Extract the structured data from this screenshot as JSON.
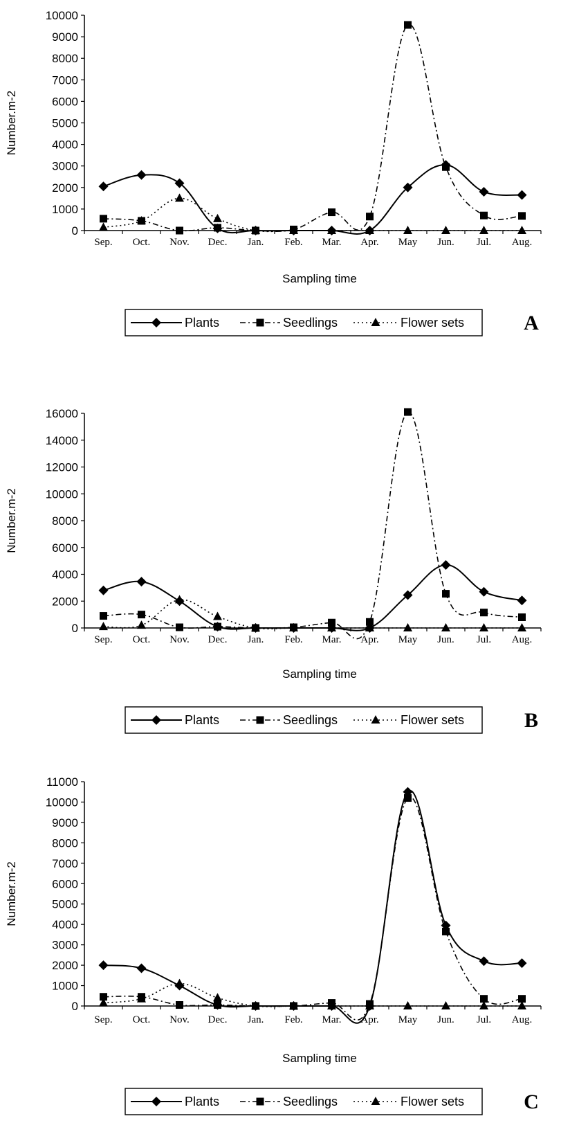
{
  "chart_data": [
    {
      "type": "line",
      "panel_label": "A",
      "xlabel": "Sampling time",
      "ylabel": "Number.m-2",
      "categories": [
        "Sep.",
        "Oct.",
        "Nov.",
        "Dec.",
        "Jan.",
        "Feb.",
        "Mar.",
        "Apr.",
        "May",
        "Jun.",
        "Jul.",
        "Aug."
      ],
      "ylim": [
        0,
        10000
      ],
      "yticks": [
        0,
        1000,
        2000,
        3000,
        4000,
        5000,
        6000,
        7000,
        8000,
        9000,
        10000
      ],
      "grid": false,
      "legend_position": "bottom",
      "series": [
        {
          "name": "Plants",
          "style": "solid",
          "marker": "diamond",
          "values": [
            2050,
            2580,
            2200,
            100,
            0,
            0,
            0,
            0,
            2000,
            3050,
            1800,
            1650
          ]
        },
        {
          "name": "Seedlings",
          "style": "dash-dot",
          "marker": "square",
          "values": [
            550,
            450,
            0,
            130,
            0,
            50,
            850,
            650,
            9550,
            2950,
            700,
            680
          ]
        },
        {
          "name": "Flower sets",
          "style": "dotted",
          "marker": "triangle",
          "values": [
            150,
            450,
            1500,
            550,
            0,
            0,
            0,
            0,
            0,
            0,
            0,
            0
          ]
        }
      ]
    },
    {
      "type": "line",
      "panel_label": "B",
      "xlabel": "Sampling time",
      "ylabel": "Number.m-2",
      "categories": [
        "Sep.",
        "Oct.",
        "Nov.",
        "Dec.",
        "Jan.",
        "Feb.",
        "Mar.",
        "Apr.",
        "May",
        "Jun.",
        "Jul.",
        "Aug."
      ],
      "ylim": [
        0,
        16000
      ],
      "yticks": [
        0,
        2000,
        4000,
        6000,
        8000,
        10000,
        12000,
        14000,
        16000
      ],
      "grid": false,
      "legend_position": "bottom",
      "series": [
        {
          "name": "Plants",
          "style": "solid",
          "marker": "diamond",
          "values": [
            2800,
            3450,
            2000,
            100,
            0,
            0,
            0,
            0,
            2450,
            4700,
            2700,
            2050
          ]
        },
        {
          "name": "Seedlings",
          "style": "dash-dot",
          "marker": "square",
          "values": [
            900,
            1000,
            50,
            100,
            0,
            50,
            400,
            450,
            16100,
            2550,
            1150,
            800
          ]
        },
        {
          "name": "Flower sets",
          "style": "dotted",
          "marker": "triangle",
          "values": [
            100,
            200,
            2100,
            850,
            0,
            0,
            0,
            0,
            0,
            0,
            0,
            0
          ]
        }
      ]
    },
    {
      "type": "line",
      "panel_label": "C",
      "xlabel": "Sampling time",
      "ylabel": "Number.m-2",
      "categories": [
        "Sep.",
        "Oct.",
        "Nov.",
        "Dec.",
        "Jan.",
        "Feb.",
        "Mar.",
        "Apr.",
        "May",
        "Jun.",
        "Jul.",
        "Aug."
      ],
      "ylim": [
        0,
        11000
      ],
      "yticks": [
        0,
        1000,
        2000,
        3000,
        4000,
        5000,
        6000,
        7000,
        8000,
        9000,
        10000,
        11000
      ],
      "grid": false,
      "legend_position": "bottom",
      "series": [
        {
          "name": "Plants",
          "style": "solid",
          "marker": "diamond",
          "values": [
            2000,
            1850,
            1000,
            50,
            0,
            0,
            0,
            0,
            10500,
            3950,
            2200,
            2100
          ]
        },
        {
          "name": "Seedlings",
          "style": "dash-dot",
          "marker": "square",
          "values": [
            450,
            450,
            50,
            50,
            0,
            0,
            150,
            100,
            10200,
            3650,
            350,
            350
          ]
        },
        {
          "name": "Flower sets",
          "style": "dotted",
          "marker": "triangle",
          "values": [
            150,
            350,
            1100,
            400,
            0,
            0,
            0,
            0,
            0,
            0,
            0,
            0
          ]
        }
      ]
    }
  ]
}
